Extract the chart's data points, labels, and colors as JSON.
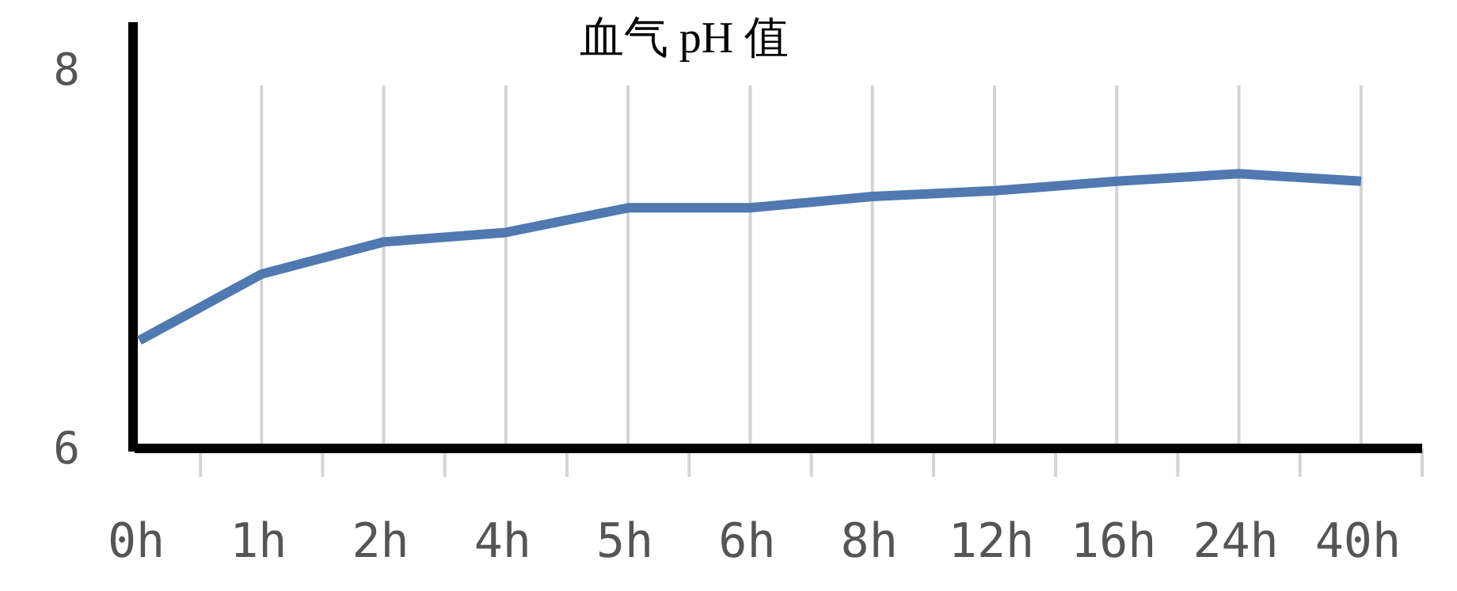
{
  "chart_data": {
    "type": "line",
    "title": "血气 pH 值",
    "categories": [
      "0h",
      "1h",
      "2h",
      "4h",
      "5h",
      "6h",
      "8h",
      "12h",
      "16h",
      "24h",
      "40h"
    ],
    "series": [
      {
        "color": "#4f79b0",
        "values": [
          6.57,
          6.92,
          7.09,
          7.14,
          7.27,
          7.27,
          7.33,
          7.36,
          7.41,
          7.45,
          7.41
        ]
      }
    ],
    "ylim": [
      6,
      8.25
    ],
    "yticks": [
      6,
      8
    ],
    "grid": "x",
    "marker": "none",
    "line_style": "solid"
  }
}
